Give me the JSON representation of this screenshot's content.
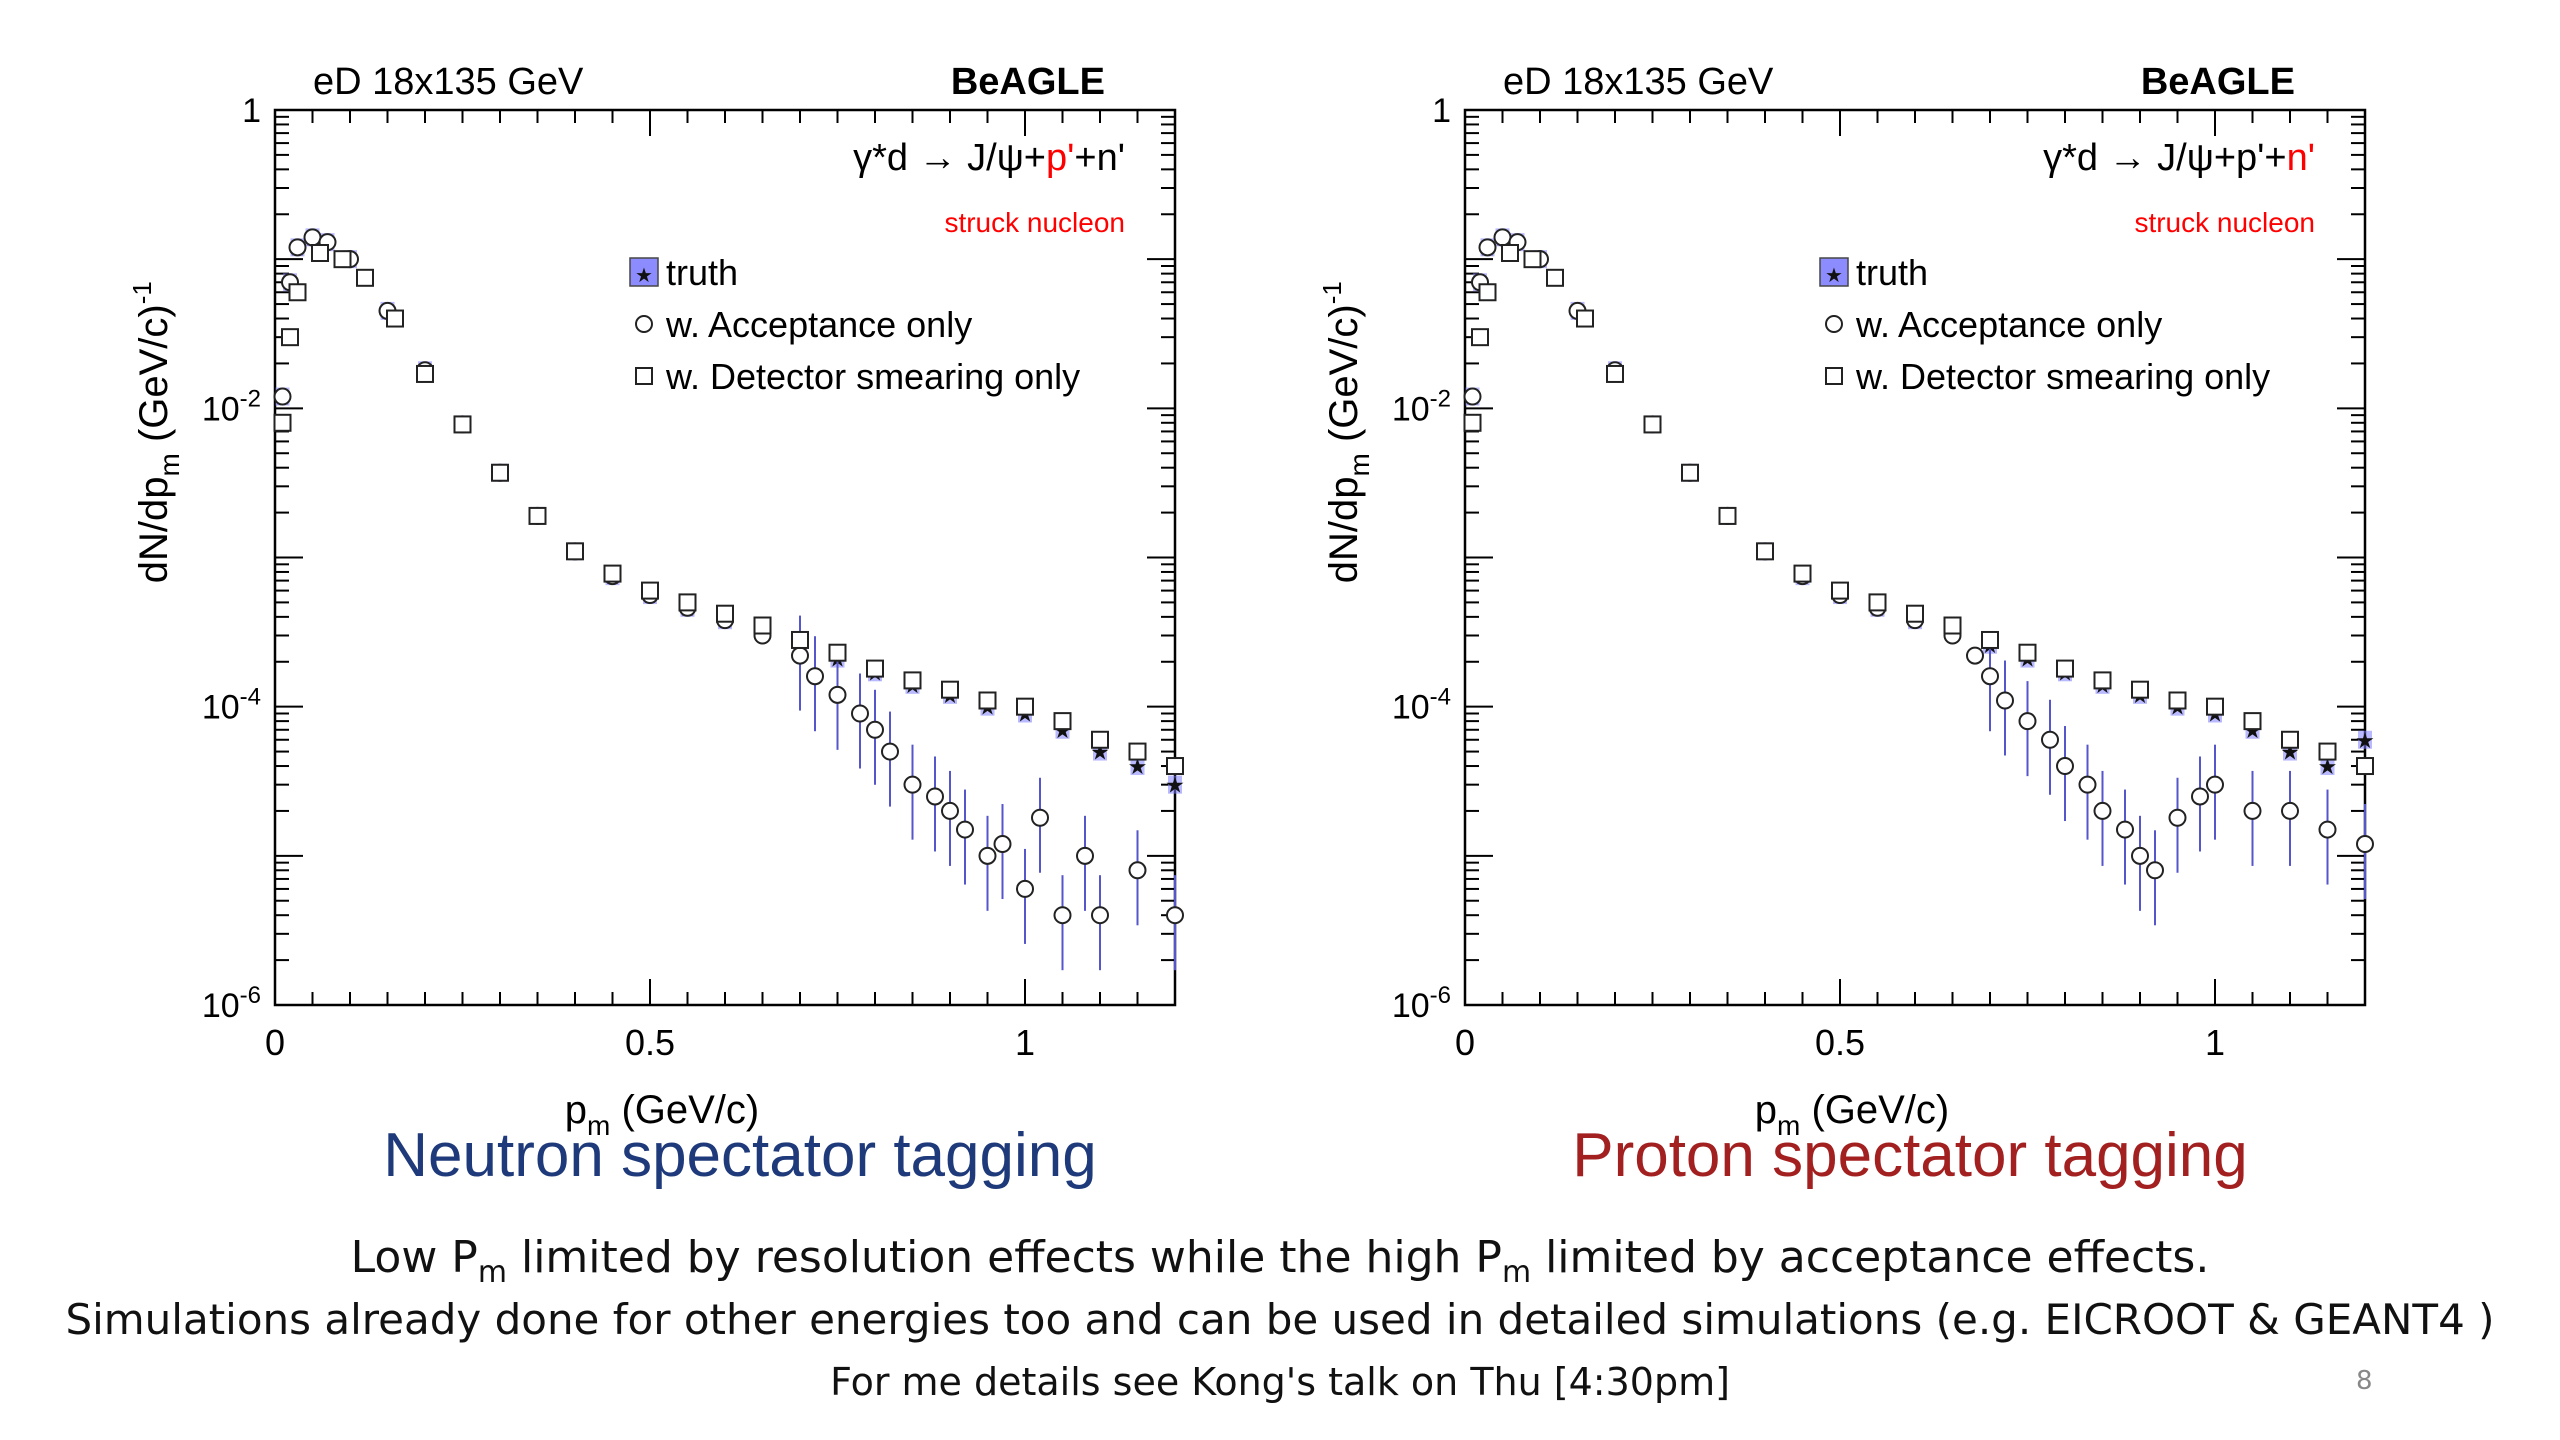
{
  "chart_data": [
    {
      "type": "scatter",
      "y_scale": "log",
      "xlim": [
        0,
        1.2
      ],
      "ylim": [
        1e-06,
        1
      ],
      "x_ticks": [
        "0",
        "0.5",
        "1"
      ],
      "y_ticks": [
        "1",
        "10^-2",
        "10^-4",
        "10^-6"
      ],
      "xlabel": "p_m (GeV/c)",
      "ylabel": "dN/dp_m (GeV/c)^-1",
      "header_left": "eD 18x135 GeV",
      "header_right": "BeAGLE",
      "reaction": {
        "a": "γ*d → J/ψ+",
        "b": "p'",
        "c": "+",
        "d": "n'"
      },
      "reaction_highlight": "b",
      "struck_label": "struck nucleon",
      "legend_position": "top-right",
      "series": [
        {
          "name": "truth",
          "marker": "star",
          "x": [
            0.01,
            0.02,
            0.03,
            0.05,
            0.07,
            0.1,
            0.15,
            0.2,
            0.25,
            0.3,
            0.35,
            0.4,
            0.45,
            0.5,
            0.55,
            0.6,
            0.65,
            0.7,
            0.75,
            0.8,
            0.85,
            0.9,
            0.95,
            1.0,
            1.05,
            1.1,
            1.15,
            1.2
          ],
          "y": [
            0.012,
            0.07,
            0.12,
            0.14,
            0.13,
            0.1,
            0.045,
            0.018,
            0.0078,
            0.0037,
            0.0019,
            0.0011,
            0.00075,
            0.00056,
            0.00046,
            0.00038,
            0.00032,
            0.00026,
            0.00021,
            0.00017,
            0.00014,
            0.00012,
            0.0001,
            9e-05,
            7e-05,
            5e-05,
            4e-05,
            3e-05
          ]
        },
        {
          "name": "w. Acceptance only",
          "marker": "circle",
          "x": [
            0.01,
            0.02,
            0.03,
            0.05,
            0.07,
            0.1,
            0.15,
            0.2,
            0.25,
            0.3,
            0.35,
            0.4,
            0.45,
            0.5,
            0.55,
            0.6,
            0.65,
            0.7,
            0.72,
            0.75,
            0.78,
            0.8,
            0.82,
            0.85,
            0.88,
            0.9,
            0.92,
            0.95,
            0.97,
            1.0,
            1.02,
            1.05,
            1.08,
            1.1,
            1.15,
            1.2
          ],
          "y": [
            0.012,
            0.07,
            0.12,
            0.14,
            0.13,
            0.1,
            0.045,
            0.018,
            0.0078,
            0.0037,
            0.0019,
            0.0011,
            0.00075,
            0.00056,
            0.00046,
            0.00038,
            0.0003,
            0.00022,
            0.00016,
            0.00012,
            9e-05,
            7e-05,
            5e-05,
            3e-05,
            2.5e-05,
            2e-05,
            1.5e-05,
            1e-05,
            1.2e-05,
            6e-06,
            1.8e-05,
            4e-06,
            1e-05,
            4e-06,
            8e-06,
            4e-06
          ]
        },
        {
          "name": "w. Detector smearing only",
          "marker": "square",
          "x": [
            0.01,
            0.02,
            0.03,
            0.06,
            0.09,
            0.12,
            0.16,
            0.2,
            0.25,
            0.3,
            0.35,
            0.4,
            0.45,
            0.5,
            0.55,
            0.6,
            0.65,
            0.7,
            0.75,
            0.8,
            0.85,
            0.9,
            0.95,
            1.0,
            1.05,
            1.1,
            1.15,
            1.2
          ],
          "y": [
            0.008,
            0.03,
            0.06,
            0.11,
            0.1,
            0.075,
            0.04,
            0.017,
            0.0078,
            0.0037,
            0.0019,
            0.0011,
            0.00078,
            0.0006,
            0.0005,
            0.00042,
            0.00035,
            0.00028,
            0.00023,
            0.00018,
            0.00015,
            0.00013,
            0.00011,
            0.0001,
            8e-05,
            6e-05,
            5e-05,
            4e-05
          ]
        }
      ]
    },
    {
      "type": "scatter",
      "y_scale": "log",
      "xlim": [
        0,
        1.2
      ],
      "ylim": [
        1e-06,
        1
      ],
      "x_ticks": [
        "0",
        "0.5",
        "1"
      ],
      "y_ticks": [
        "1",
        "10^-2",
        "10^-4",
        "10^-6"
      ],
      "xlabel": "p_m (GeV/c)",
      "ylabel": "dN/dp_m (GeV/c)^-1",
      "header_left": "eD 18x135 GeV",
      "header_right": "BeAGLE",
      "reaction": {
        "a": "γ*d → J/ψ+p'+",
        "b": "n'",
        "c": "",
        "d": ""
      },
      "reaction_highlight": "b",
      "struck_label": "struck nucleon",
      "legend_position": "top-right",
      "series": [
        {
          "name": "truth",
          "marker": "star",
          "x": [
            0.01,
            0.02,
            0.03,
            0.05,
            0.07,
            0.1,
            0.15,
            0.2,
            0.25,
            0.3,
            0.35,
            0.4,
            0.45,
            0.5,
            0.55,
            0.6,
            0.65,
            0.7,
            0.75,
            0.8,
            0.85,
            0.9,
            0.95,
            1.0,
            1.05,
            1.1,
            1.15,
            1.2
          ],
          "y": [
            0.012,
            0.07,
            0.12,
            0.14,
            0.13,
            0.1,
            0.045,
            0.018,
            0.0078,
            0.0037,
            0.0019,
            0.0011,
            0.00075,
            0.00056,
            0.00046,
            0.00038,
            0.00032,
            0.00026,
            0.00021,
            0.00017,
            0.00014,
            0.00012,
            0.0001,
            9e-05,
            7e-05,
            5e-05,
            4e-05,
            6e-05
          ]
        },
        {
          "name": "w. Acceptance only",
          "marker": "circle",
          "x": [
            0.01,
            0.02,
            0.03,
            0.05,
            0.07,
            0.1,
            0.15,
            0.2,
            0.25,
            0.3,
            0.35,
            0.4,
            0.45,
            0.5,
            0.55,
            0.6,
            0.65,
            0.68,
            0.7,
            0.72,
            0.75,
            0.78,
            0.8,
            0.83,
            0.85,
            0.88,
            0.9,
            0.92,
            0.95,
            0.98,
            1.0,
            1.05,
            1.1,
            1.15,
            1.2
          ],
          "y": [
            0.012,
            0.07,
            0.12,
            0.14,
            0.13,
            0.1,
            0.045,
            0.018,
            0.0078,
            0.0037,
            0.0019,
            0.0011,
            0.00075,
            0.00056,
            0.00046,
            0.00038,
            0.0003,
            0.00022,
            0.00016,
            0.00011,
            8e-05,
            6e-05,
            4e-05,
            3e-05,
            2e-05,
            1.5e-05,
            1e-05,
            8e-06,
            1.8e-05,
            2.5e-05,
            3e-05,
            2e-05,
            2e-05,
            1.5e-05,
            1.2e-05
          ]
        },
        {
          "name": "w. Detector smearing only",
          "marker": "square",
          "x": [
            0.01,
            0.02,
            0.03,
            0.06,
            0.09,
            0.12,
            0.16,
            0.2,
            0.25,
            0.3,
            0.35,
            0.4,
            0.45,
            0.5,
            0.55,
            0.6,
            0.65,
            0.7,
            0.75,
            0.8,
            0.85,
            0.9,
            0.95,
            1.0,
            1.05,
            1.1,
            1.15,
            1.2
          ],
          "y": [
            0.008,
            0.03,
            0.06,
            0.11,
            0.1,
            0.075,
            0.04,
            0.017,
            0.0078,
            0.0037,
            0.0019,
            0.0011,
            0.00078,
            0.0006,
            0.0005,
            0.00042,
            0.00035,
            0.00028,
            0.00023,
            0.00018,
            0.00015,
            0.00013,
            0.00011,
            0.0001,
            8e-05,
            6e-05,
            5e-05,
            4e-05
          ]
        }
      ]
    }
  ],
  "captions": {
    "left": "Neutron spectator tagging",
    "right": "Proton spectator tagging"
  },
  "notes": {
    "line1": {
      "a": "Low P",
      "b": "m",
      "c": " limited by resolution effects while the high P",
      "d": "m",
      "e": " limited by acceptance effects."
    },
    "line2": "Simulations already done for other energies too and can be used in detailed simulations (e.g. EICROOT & GEANT4 )",
    "line3": "For me details see Kong's talk on Thu [4:30pm]"
  },
  "page_number": "8",
  "colors": {
    "caption_left": "#1f3a7a",
    "caption_right": "#a32020",
    "highlight": "#ff0000",
    "truth_band": "#8080ff",
    "error_bar": "#5555cc"
  }
}
